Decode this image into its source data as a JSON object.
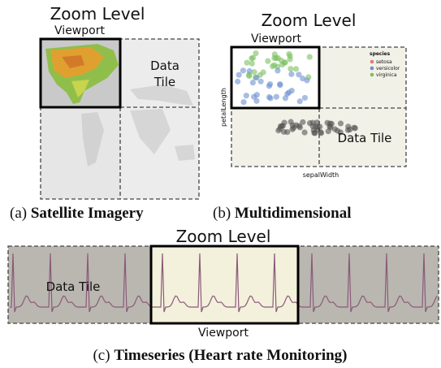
{
  "panels": [
    {
      "zoom_label": "Zoom Level",
      "viewport_label": "Viewport",
      "tile_label": [
        "Data",
        "Tile"
      ],
      "caption": {
        "label": "(a)",
        "title": "Satellite Imagery"
      }
    },
    {
      "zoom_label": "Zoom Level",
      "viewport_label": "Viewport",
      "tile_label": [
        "Data Tile"
      ],
      "y_axis_label": "petalLength",
      "x_axis_label": "sepalWidth",
      "legend": {
        "title": "species",
        "items": [
          "setosa",
          "versicolor",
          "virginica"
        ]
      },
      "caption": {
        "label": "(b)",
        "title": "Multidimensional"
      }
    },
    {
      "zoom_label": "Zoom Level",
      "viewport_label": "Viewport",
      "tile_label": [
        "Data Tile"
      ],
      "caption": {
        "label": "(c)",
        "title": "Timeseries (Heart rate Monitoring)"
      }
    }
  ]
}
